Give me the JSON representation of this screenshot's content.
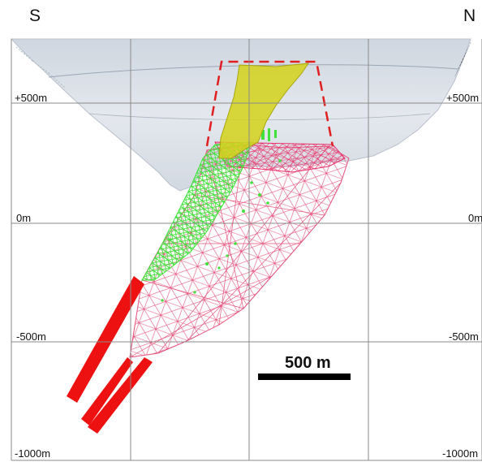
{
  "compass": {
    "south": "S",
    "north": "N"
  },
  "depth_labels": {
    "left": [
      "+500m",
      "0m",
      "-500m",
      "-1000m"
    ],
    "right": [
      "+500m",
      "0m",
      "-500m",
      "-1000m"
    ]
  },
  "scale_bar": {
    "label": "500 m"
  },
  "colors": {
    "pit_surface": "#dfe3ea",
    "orebody_yellow": "#d4d21a",
    "dashed_outline": "#e02020",
    "green_zone": "#3fe23a",
    "wireframe": "#e4507a",
    "red_drill": "#ee1111",
    "gridline": "#8a8a8a",
    "scale_bar": "#000000"
  }
}
